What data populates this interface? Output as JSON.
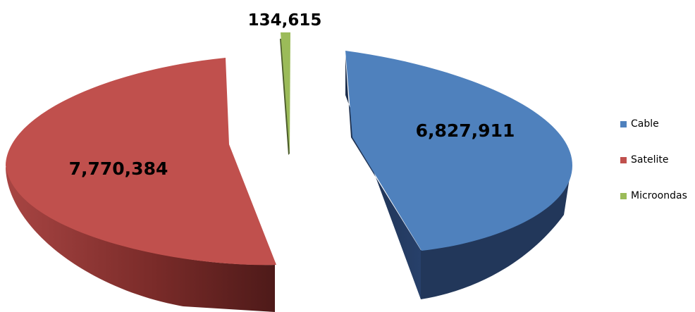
{
  "chart_data": {
    "type": "pie",
    "style": "3d-exploded",
    "categories": [
      "Cable",
      "Satelite",
      "Microondas"
    ],
    "values": [
      6827911,
      7770384,
      134615
    ],
    "labels": [
      "6,827,911",
      "7,770,384",
      "134,615"
    ],
    "colors": [
      "#4f81bd",
      "#c0504d",
      "#9bbb59"
    ],
    "side_colors": [
      "#22375a",
      "#6e2523",
      "#4c5c2c"
    ],
    "legend_position": "right"
  }
}
